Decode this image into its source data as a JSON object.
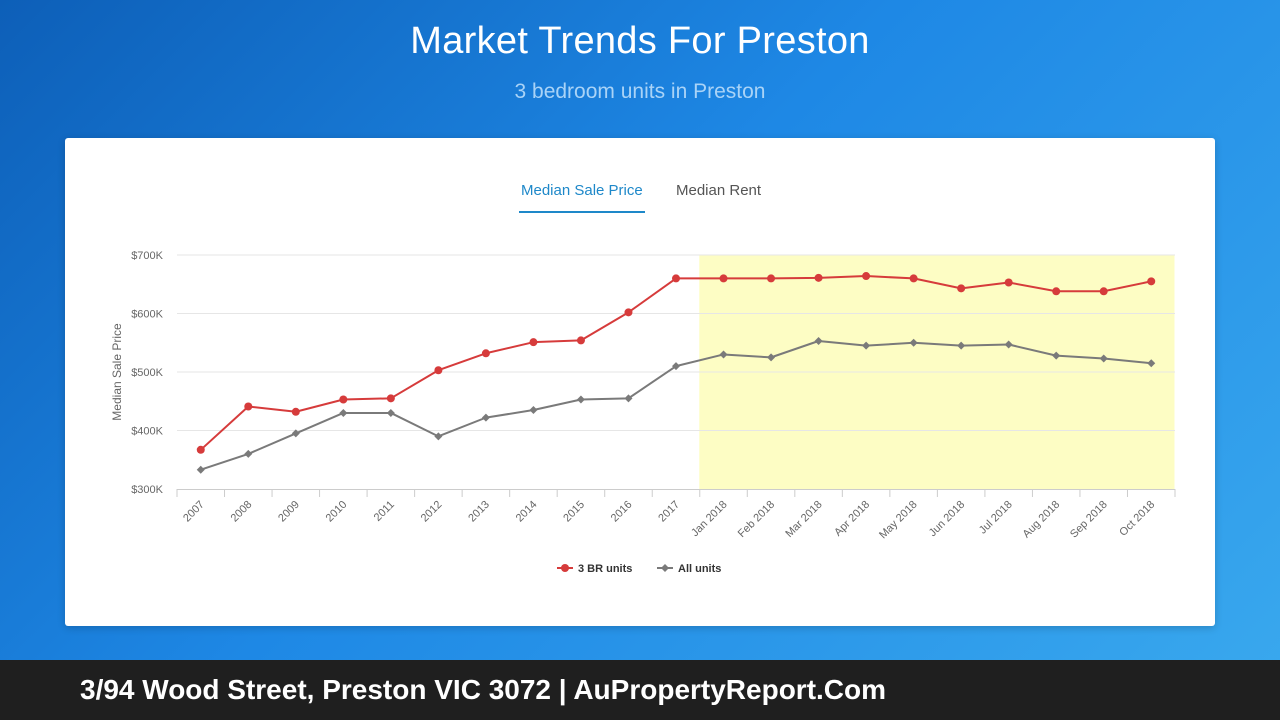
{
  "header": {
    "title": "Market Trends For Preston",
    "subtitle": "3 bedroom units in Preston"
  },
  "tabs": [
    {
      "label": "Median Sale Price",
      "active": true
    },
    {
      "label": "Median Rent",
      "active": false
    }
  ],
  "footer": {
    "text": "3/94 Wood Street, Preston VIC 3072 | AuPropertyReport.Com"
  },
  "chart_data": {
    "type": "line",
    "title": "",
    "xlabel": "",
    "ylabel": "Median Sale Price",
    "ylim": [
      300000,
      700000
    ],
    "yticks": [
      300000,
      400000,
      500000,
      600000,
      700000
    ],
    "ytick_labels": [
      "$300K",
      "$400K",
      "$500K",
      "$600K",
      "$700K"
    ],
    "categories": [
      "2007",
      "2008",
      "2009",
      "2010",
      "2011",
      "2012",
      "2013",
      "2014",
      "2015",
      "2016",
      "2017",
      "Jan 2018",
      "Feb 2018",
      "Mar 2018",
      "Apr 2018",
      "May 2018",
      "Jun 2018",
      "Jul 2018",
      "Aug 2018",
      "Sep 2018",
      "Oct 2018"
    ],
    "highlight_range": [
      "Jan 2018",
      "Oct 2018"
    ],
    "highlight_color": "#fdfdc4",
    "grid": true,
    "legend_position": "bottom",
    "series": [
      {
        "name": "3 BR units",
        "color": "#d63b3b",
        "marker": "circle",
        "values": [
          367000,
          441000,
          432000,
          453000,
          455000,
          503000,
          532000,
          551000,
          554000,
          602000,
          660000,
          660000,
          660000,
          661000,
          664000,
          660000,
          643000,
          653000,
          638000,
          638000,
          655000
        ]
      },
      {
        "name": "All units",
        "color": "#7a7a7a",
        "marker": "diamond",
        "values": [
          333000,
          360000,
          395000,
          430000,
          430000,
          390000,
          422000,
          435000,
          453000,
          455000,
          510000,
          530000,
          525000,
          553000,
          545000,
          550000,
          545000,
          547000,
          528000,
          523000,
          515000
        ]
      }
    ]
  }
}
